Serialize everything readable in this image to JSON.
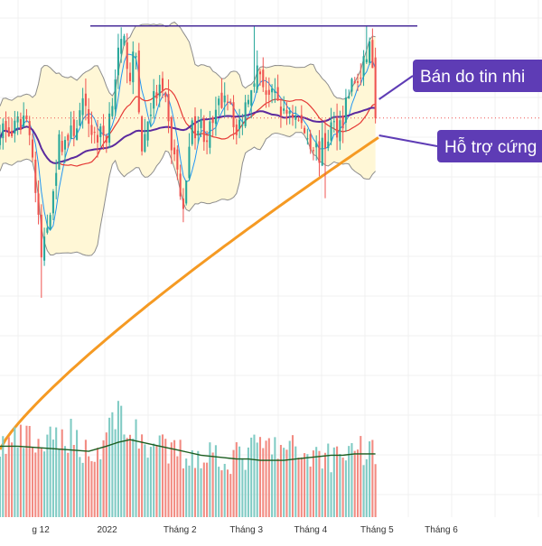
{
  "chart_data": {
    "type": "candlestick",
    "x_axis": {
      "tick_labels": [
        "g 12",
        "2022",
        "Tháng 2",
        "Tháng 3",
        "Tháng 4",
        "Tháng 5",
        "Tháng 6"
      ],
      "tick_day_index": [
        9,
        40,
        74,
        105,
        135,
        166,
        196
      ],
      "day_range": [
        -10,
        243
      ]
    },
    "price_scale": {
      "y_range": [
        50,
        100
      ]
    },
    "volume_scale": {
      "y_range": [
        0,
        100
      ]
    },
    "bollinger": {
      "band_fill_color": "#fff7d6",
      "band_line_color": "#8d8d8d"
    },
    "moving_averages": [
      {
        "color": "#2196f3",
        "role": "fast"
      },
      {
        "color": "#e53935",
        "role": "medium"
      },
      {
        "color": "#5b2a9e",
        "role": "slow"
      },
      {
        "color": "#f59a23",
        "role": "long"
      }
    ],
    "candles": {
      "up_color": "#26a69a",
      "down_color": "#ef5350",
      "start_day": -10,
      "step_day": 1.38,
      "price_anchors": [
        [
          0,
          88.3
        ],
        [
          4,
          87.5
        ],
        [
          8,
          89.2
        ],
        [
          10,
          88.5
        ],
        [
          14,
          76.2
        ],
        [
          16,
          79.2
        ],
        [
          20,
          86.7
        ],
        [
          24,
          87.5
        ],
        [
          28,
          90
        ],
        [
          32,
          87.5
        ],
        [
          36,
          87.5
        ],
        [
          40,
          95
        ],
        [
          42,
          95.8
        ],
        [
          44,
          93.3
        ],
        [
          46,
          95
        ],
        [
          48,
          85.8
        ],
        [
          50,
          89.2
        ],
        [
          52,
          90.8
        ],
        [
          54,
          91.7
        ],
        [
          56,
          90
        ],
        [
          58,
          86.7
        ],
        [
          60,
          84.2
        ],
        [
          62,
          80
        ],
        [
          64,
          87.5
        ],
        [
          66,
          88.3
        ],
        [
          68,
          88.3
        ],
        [
          70,
          87.5
        ],
        [
          72,
          88.3
        ],
        [
          74,
          90
        ],
        [
          76,
          91.7
        ],
        [
          78,
          90.8
        ],
        [
          80,
          87.5
        ],
        [
          82,
          89.2
        ],
        [
          84,
          91.7
        ],
        [
          86,
          93.3
        ],
        [
          88,
          93.3
        ],
        [
          90,
          91.7
        ],
        [
          92,
          90.8
        ],
        [
          94,
          90.8
        ],
        [
          96,
          89.2
        ],
        [
          98,
          90
        ],
        [
          100,
          89.2
        ],
        [
          104,
          87.5
        ],
        [
          106,
          86.7
        ],
        [
          108,
          85.8
        ],
        [
          110,
          86.7
        ],
        [
          112,
          88.3
        ],
        [
          114,
          88.3
        ],
        [
          116,
          89.2
        ],
        [
          118,
          91.7
        ],
        [
          120,
          92.5
        ],
        [
          122,
          92.5
        ],
        [
          124,
          95
        ],
        [
          125,
          95.8
        ],
        [
          127,
          92.5
        ]
      ],
      "volume_anchors": [
        [
          0,
          55
        ],
        [
          8,
          60
        ],
        [
          16,
          55
        ],
        [
          24,
          65
        ],
        [
          32,
          45
        ],
        [
          40,
          85
        ],
        [
          44,
          65
        ],
        [
          48,
          60
        ],
        [
          56,
          50
        ],
        [
          64,
          48
        ],
        [
          72,
          50
        ],
        [
          80,
          45
        ],
        [
          88,
          55
        ],
        [
          96,
          52
        ],
        [
          104,
          50
        ],
        [
          112,
          48
        ],
        [
          120,
          55
        ],
        [
          127,
          50
        ]
      ]
    },
    "volume_ma": {
      "color": "#1b5e20",
      "points": [
        [
          0,
          55
        ],
        [
          6,
          55
        ],
        [
          12,
          54
        ],
        [
          18,
          53
        ],
        [
          24,
          52
        ],
        [
          30,
          51
        ],
        [
          36,
          55
        ],
        [
          40,
          58
        ],
        [
          44,
          60
        ],
        [
          48,
          58
        ],
        [
          52,
          56
        ],
        [
          56,
          54
        ],
        [
          60,
          52
        ],
        [
          64,
          50
        ],
        [
          68,
          48
        ],
        [
          72,
          47
        ],
        [
          76,
          46
        ],
        [
          80,
          45
        ],
        [
          84,
          45
        ],
        [
          88,
          44
        ],
        [
          92,
          44
        ],
        [
          96,
          44
        ],
        [
          100,
          45
        ],
        [
          104,
          46
        ],
        [
          108,
          47
        ],
        [
          112,
          48
        ],
        [
          116,
          48
        ],
        [
          120,
          49
        ],
        [
          124,
          49
        ],
        [
          127,
          49
        ]
      ]
    },
    "annotations": [
      {
        "type": "horizontal_line",
        "name": "resistance",
        "value": 97.6,
        "color": "#4a2e9a"
      },
      {
        "type": "dotted_line",
        "name": "last_price",
        "value": 89.1,
        "color": "#ef5350"
      },
      {
        "type": "callout",
        "text": "Bán do tin nhi",
        "color": "#5e3cb5"
      },
      {
        "type": "callout",
        "text": "Hỗ trợ cứng",
        "color": "#5e3cb5"
      }
    ]
  }
}
